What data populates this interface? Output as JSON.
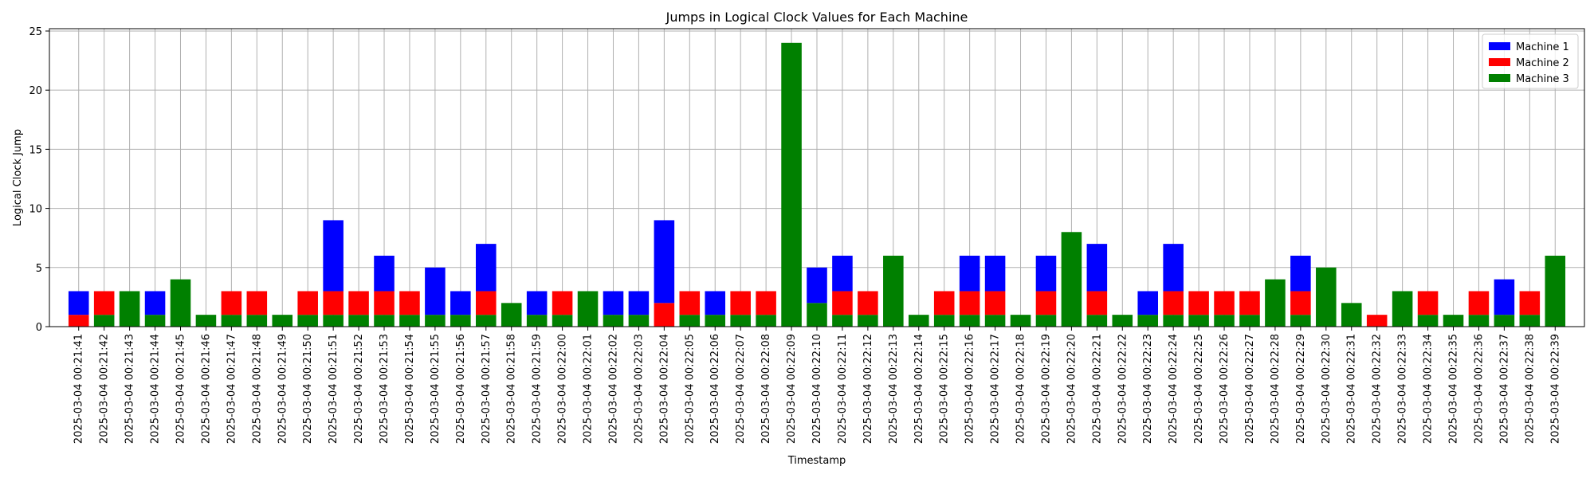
{
  "chart_data": {
    "type": "bar",
    "stacked": true,
    "title": "Jumps in Logical Clock Values for Each Machine",
    "xlabel": "Timestamp",
    "ylabel": "Logical Clock Jump",
    "ylim": [
      0,
      25.2
    ],
    "yticks": [
      0,
      5,
      10,
      15,
      20,
      25
    ],
    "grid": true,
    "legend_position": "top-right",
    "categories": [
      "2025-03-04 00:21:41",
      "2025-03-04 00:21:42",
      "2025-03-04 00:21:43",
      "2025-03-04 00:21:44",
      "2025-03-04 00:21:45",
      "2025-03-04 00:21:46",
      "2025-03-04 00:21:47",
      "2025-03-04 00:21:48",
      "2025-03-04 00:21:49",
      "2025-03-04 00:21:50",
      "2025-03-04 00:21:51",
      "2025-03-04 00:21:52",
      "2025-03-04 00:21:53",
      "2025-03-04 00:21:54",
      "2025-03-04 00:21:55",
      "2025-03-04 00:21:56",
      "2025-03-04 00:21:57",
      "2025-03-04 00:21:58",
      "2025-03-04 00:21:59",
      "2025-03-04 00:22:00",
      "2025-03-04 00:22:01",
      "2025-03-04 00:22:02",
      "2025-03-04 00:22:03",
      "2025-03-04 00:22:04",
      "2025-03-04 00:22:05",
      "2025-03-04 00:22:06",
      "2025-03-04 00:22:07",
      "2025-03-04 00:22:08",
      "2025-03-04 00:22:09",
      "2025-03-04 00:22:10",
      "2025-03-04 00:22:11",
      "2025-03-04 00:22:12",
      "2025-03-04 00:22:13",
      "2025-03-04 00:22:14",
      "2025-03-04 00:22:15",
      "2025-03-04 00:22:16",
      "2025-03-04 00:22:17",
      "2025-03-04 00:22:18",
      "2025-03-04 00:22:19",
      "2025-03-04 00:22:20",
      "2025-03-04 00:22:21",
      "2025-03-04 00:22:22",
      "2025-03-04 00:22:23",
      "2025-03-04 00:22:24",
      "2025-03-04 00:22:25",
      "2025-03-04 00:22:26",
      "2025-03-04 00:22:27",
      "2025-03-04 00:22:28",
      "2025-03-04 00:22:29",
      "2025-03-04 00:22:30",
      "2025-03-04 00:22:31",
      "2025-03-04 00:22:32",
      "2025-03-04 00:22:33",
      "2025-03-04 00:22:34",
      "2025-03-04 00:22:35",
      "2025-03-04 00:22:36",
      "2025-03-04 00:22:37",
      "2025-03-04 00:22:38",
      "2025-03-04 00:22:39"
    ],
    "series": [
      {
        "name": "Machine 1",
        "color": "#0000ff",
        "values": [
          2,
          0,
          0,
          2,
          0,
          0,
          0,
          0,
          0,
          0,
          6,
          0,
          3,
          0,
          4,
          2,
          4,
          0,
          2,
          0,
          0,
          2,
          2,
          7,
          0,
          2,
          0,
          0,
          0,
          3,
          3,
          0,
          0,
          0,
          0,
          3,
          3,
          0,
          3,
          0,
          4,
          0,
          2,
          4,
          0,
          0,
          0,
          0,
          3,
          0,
          0,
          0,
          0,
          0,
          0,
          0,
          3,
          0,
          0
        ]
      },
      {
        "name": "Machine 2",
        "color": "#ff0000",
        "values": [
          1,
          2,
          0,
          0,
          0,
          0,
          2,
          2,
          0,
          2,
          2,
          2,
          2,
          2,
          0,
          0,
          2,
          0,
          0,
          2,
          0,
          0,
          0,
          2,
          2,
          0,
          2,
          2,
          0,
          0,
          2,
          2,
          0,
          0,
          2,
          2,
          2,
          0,
          2,
          0,
          2,
          0,
          0,
          2,
          2,
          2,
          2,
          0,
          2,
          0,
          0,
          1,
          0,
          2,
          0,
          2,
          0,
          2,
          0
        ]
      },
      {
        "name": "Machine 3",
        "color": "#008000",
        "values": [
          0,
          1,
          3,
          1,
          4,
          1,
          1,
          1,
          1,
          1,
          1,
          1,
          1,
          1,
          1,
          1,
          1,
          2,
          1,
          1,
          3,
          1,
          1,
          0,
          1,
          1,
          1,
          1,
          24,
          2,
          1,
          1,
          6,
          1,
          1,
          1,
          1,
          1,
          1,
          8,
          1,
          1,
          1,
          1,
          1,
          1,
          1,
          4,
          1,
          5,
          2,
          0,
          3,
          1,
          1,
          1,
          1,
          1,
          6
        ]
      }
    ]
  }
}
